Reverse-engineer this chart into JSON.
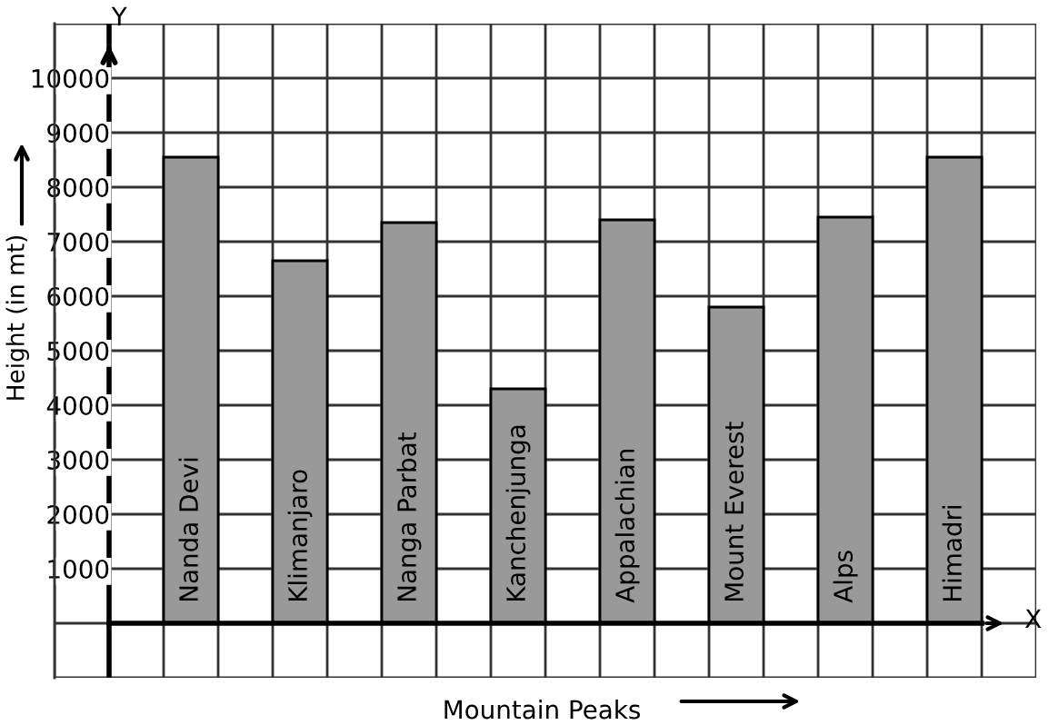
{
  "chart_data": {
    "type": "bar",
    "xlabel": "Mountain Peaks",
    "ylabel": "Height (in mt)",
    "categories": [
      "Nanda Devi",
      "Klimanjaro",
      "Nanga Parbat",
      "Kanchenjunga",
      "Appalachian",
      "Mount Everest",
      "Alps",
      "Himadri"
    ],
    "values": [
      8550,
      6650,
      7350,
      4300,
      7400,
      5800,
      7450,
      8550
    ],
    "color": "#999999",
    "ylim": [
      -1000,
      11000
    ],
    "yticks": [
      1000,
      2000,
      3000,
      4000,
      5000,
      6000,
      7000,
      8000,
      9000,
      10000
    ],
    "grid": true,
    "legend": false,
    "annotations": [
      "Y",
      "X"
    ]
  }
}
